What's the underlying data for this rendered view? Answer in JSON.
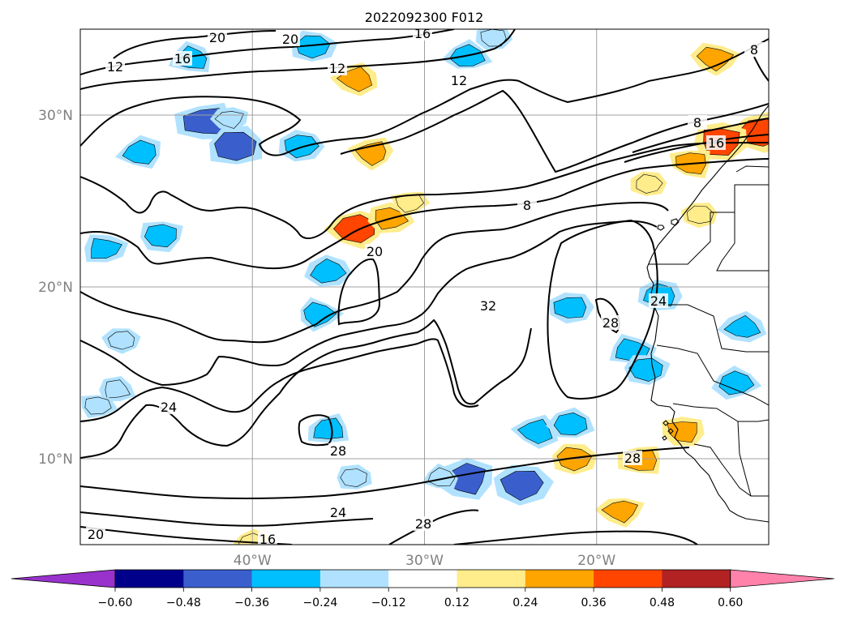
{
  "chart_data": {
    "type": "heatmap",
    "title": "2022092300 F012",
    "projection": "lat-lon map, North Atlantic / West Africa",
    "grid": true,
    "x_axis": {
      "units": "longitude",
      "range_deg": [
        -50,
        -10
      ],
      "tick_values": [
        -40,
        -30,
        -20
      ],
      "tick_labels": [
        "40°W",
        "30°W",
        "20°W"
      ],
      "tick_label_color": "#808080"
    },
    "y_axis": {
      "units": "latitude",
      "range_deg": [
        5,
        35
      ],
      "tick_values": [
        10,
        20,
        30
      ],
      "tick_labels": [
        "10°N",
        "20°N",
        "30°N"
      ],
      "tick_label_color": "#808080"
    },
    "colorbar": {
      "orientation": "horizontal",
      "extend": "both",
      "boundaries": [
        -0.6,
        -0.48,
        -0.36,
        -0.24,
        -0.12,
        0.12,
        0.24,
        0.36,
        0.48,
        0.6
      ],
      "tick_labels": [
        "−0.60",
        "−0.48",
        "−0.36",
        "−0.24",
        "−0.12",
        "0.12",
        "0.24",
        "0.36",
        "0.48",
        "0.60"
      ],
      "colors": [
        "#9932cc",
        "#00008b",
        "#3a5fcd",
        "#00bfff",
        "#b0e2ff",
        "#ffffff",
        "#ffec8b",
        "#ffa500",
        "#ff4500",
        "#b22222",
        "#ff82ab"
      ]
    },
    "contour_labels": [
      "20",
      "16",
      "12",
      "20",
      "16",
      "12",
      "12",
      "8",
      "16",
      "8",
      "8",
      "20",
      "32",
      "28",
      "24",
      "28",
      "24",
      "28",
      "20",
      "16",
      "24",
      "28"
    ],
    "filled_regions": [
      {
        "lon": -43.5,
        "lat": 33.3,
        "value": -0.3
      },
      {
        "lon": -36.5,
        "lat": 34.0,
        "value": -0.3
      },
      {
        "lon": -34.0,
        "lat": 32.1,
        "value": 0.3
      },
      {
        "lon": -27.5,
        "lat": 33.4,
        "value": -0.3
      },
      {
        "lon": -26.0,
        "lat": 34.5,
        "value": -0.2
      },
      {
        "lon": -42.7,
        "lat": 29.6,
        "value": -0.45
      },
      {
        "lon": -41.0,
        "lat": 28.2,
        "value": -0.45
      },
      {
        "lon": -41.3,
        "lat": 29.8,
        "value": -0.2
      },
      {
        "lon": -46.5,
        "lat": 27.8,
        "value": -0.3
      },
      {
        "lon": -37.2,
        "lat": 28.2,
        "value": -0.3
      },
      {
        "lon": -33.0,
        "lat": 27.8,
        "value": 0.3
      },
      {
        "lon": -10.5,
        "lat": 29.0,
        "value": 0.42
      },
      {
        "lon": -12.8,
        "lat": 28.5,
        "value": 0.42
      },
      {
        "lon": -14.5,
        "lat": 27.2,
        "value": 0.3
      },
      {
        "lon": -17.0,
        "lat": 26.0,
        "value": 0.2
      },
      {
        "lon": -13.1,
        "lat": 33.3,
        "value": 0.3
      },
      {
        "lon": -34.0,
        "lat": 23.4,
        "value": 0.42
      },
      {
        "lon": -32.0,
        "lat": 24.0,
        "value": 0.3
      },
      {
        "lon": -30.9,
        "lat": 24.9,
        "value": 0.2
      },
      {
        "lon": -14.0,
        "lat": 24.2,
        "value": 0.2
      },
      {
        "lon": -48.6,
        "lat": 22.2,
        "value": -0.3
      },
      {
        "lon": -45.3,
        "lat": 23.0,
        "value": -0.3
      },
      {
        "lon": -35.6,
        "lat": 20.9,
        "value": -0.3
      },
      {
        "lon": -36.2,
        "lat": 18.4,
        "value": -0.3
      },
      {
        "lon": -47.6,
        "lat": 16.9,
        "value": -0.2
      },
      {
        "lon": -47.9,
        "lat": 14.0,
        "value": -0.2
      },
      {
        "lon": -49.0,
        "lat": 13.1,
        "value": -0.2
      },
      {
        "lon": -16.3,
        "lat": 19.5,
        "value": -0.3
      },
      {
        "lon": -18.0,
        "lat": 16.3,
        "value": -0.3
      },
      {
        "lon": -17.1,
        "lat": 15.2,
        "value": -0.3
      },
      {
        "lon": -11.5,
        "lat": 17.6,
        "value": -0.3
      },
      {
        "lon": -11.9,
        "lat": 14.4,
        "value": -0.3
      },
      {
        "lon": -21.5,
        "lat": 18.8,
        "value": -0.3
      },
      {
        "lon": -35.6,
        "lat": 11.7,
        "value": -0.3
      },
      {
        "lon": -34.1,
        "lat": 8.9,
        "value": -0.2
      },
      {
        "lon": -27.6,
        "lat": 8.8,
        "value": -0.45
      },
      {
        "lon": -29.0,
        "lat": 8.9,
        "value": -0.2
      },
      {
        "lon": -24.3,
        "lat": 8.5,
        "value": -0.45
      },
      {
        "lon": -23.5,
        "lat": 11.6,
        "value": -0.3
      },
      {
        "lon": -21.5,
        "lat": 12.0,
        "value": -0.3
      },
      {
        "lon": -15.0,
        "lat": 11.6,
        "value": 0.3
      },
      {
        "lon": -17.4,
        "lat": 9.9,
        "value": 0.3
      },
      {
        "lon": -21.3,
        "lat": 10.0,
        "value": 0.3
      },
      {
        "lon": -18.6,
        "lat": 7.0,
        "value": 0.3
      },
      {
        "lon": -40.0,
        "lat": 5.1,
        "value": 0.2
      }
    ]
  }
}
